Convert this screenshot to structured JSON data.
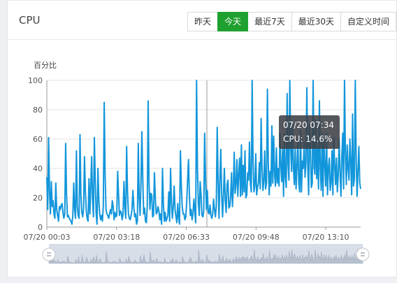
{
  "panel": {
    "title": "CPU"
  },
  "range_tabs": [
    {
      "label": "昨天",
      "active": false
    },
    {
      "label": "今天",
      "active": true
    },
    {
      "label": "最近7天",
      "active": false
    },
    {
      "label": "最近30天",
      "active": false
    },
    {
      "label": "自定义时间",
      "active": false
    }
  ],
  "tooltip": {
    "time": "07/20 07:34",
    "value": "CPU: 14.6%"
  },
  "chart_data": {
    "type": "line",
    "ylabel": "百分比",
    "ylim": [
      0,
      100
    ],
    "y_ticks": [
      0,
      20,
      40,
      60,
      80,
      100
    ],
    "x_tick_labels": [
      "07/20 00:03",
      "07/20 03:18",
      "07/20 06:33",
      "07/20 09:48",
      "07/20 13:10"
    ],
    "grid": true,
    "colors": {
      "line": "#1296db",
      "dataZoom_fill": "#d8dee8"
    },
    "series": [
      {
        "values": [
          34,
          12,
          61,
          24,
          9,
          31,
          14,
          18,
          9,
          6,
          30,
          12,
          8,
          4,
          14,
          12,
          15,
          16,
          10,
          6,
          9,
          57,
          22,
          7,
          8,
          6,
          5,
          4,
          2,
          8,
          30,
          12,
          6,
          52,
          14,
          8,
          6,
          63,
          22,
          10,
          7,
          13,
          48,
          24,
          11,
          6,
          4,
          33,
          9,
          28,
          48,
          18,
          7,
          61,
          32,
          9,
          2,
          40,
          18,
          9,
          5,
          8,
          4,
          15,
          85,
          36,
          12,
          9,
          8,
          6,
          9,
          12,
          9,
          18,
          14,
          5,
          10,
          7,
          8,
          38,
          22,
          8,
          11,
          10,
          5,
          9,
          31,
          14,
          6,
          55,
          24,
          9,
          6,
          5,
          8,
          12,
          25,
          14,
          7,
          9,
          2,
          4,
          57,
          20,
          8,
          30,
          65,
          33,
          9,
          13,
          4,
          3,
          14,
          86,
          30,
          12,
          23,
          22,
          7,
          8,
          37,
          20,
          9,
          10,
          14,
          11,
          5,
          9,
          2,
          40,
          16,
          4,
          10,
          4,
          6,
          8,
          24,
          4,
          40,
          17,
          6,
          14,
          28,
          12,
          7,
          3,
          16,
          6,
          2,
          52,
          28,
          14,
          9,
          9,
          5,
          7,
          17,
          32,
          46,
          22,
          8,
          12,
          5,
          9,
          19,
          11,
          3,
          100,
          40,
          16,
          8,
          31,
          22,
          8,
          7,
          11,
          64,
          33,
          12,
          25,
          10,
          9,
          15,
          8,
          6,
          9,
          19,
          12,
          7,
          14,
          68,
          33,
          6,
          32,
          53,
          22,
          7,
          22,
          40,
          18,
          10,
          29,
          32,
          13,
          14,
          21,
          37,
          14,
          26,
          51,
          23,
          29,
          46,
          21,
          36,
          47,
          21,
          56,
          22,
          42,
          24,
          52,
          20,
          22,
          37,
          32,
          58,
          30,
          24,
          100,
          44,
          24,
          28,
          50,
          22,
          27,
          30,
          44,
          26,
          74,
          40,
          25,
          31,
          52,
          26,
          30,
          94,
          43,
          22,
          38,
          28,
          69,
          30,
          62,
          36,
          28,
          54,
          30,
          40,
          28,
          64,
          42,
          31,
          54,
          21,
          64,
          34,
          27,
          91,
          43,
          32,
          100,
          54,
          38,
          72,
          41,
          29,
          54,
          26,
          42,
          60,
          30,
          24,
          66,
          24,
          45,
          40,
          58,
          34,
          44,
          95,
          42,
          22,
          70,
          52,
          27,
          30,
          100,
          41,
          36,
          73,
          33,
          54,
          26,
          86,
          40,
          25,
          64,
          21,
          61,
          42,
          28,
          64,
          22,
          40,
          47,
          25,
          30,
          52,
          22,
          61,
          42,
          29,
          47,
          24,
          35,
          60,
          38,
          21,
          48,
          64,
          26,
          100,
          51,
          29,
          56,
          40,
          32,
          60,
          44,
          22,
          77,
          28,
          33,
          100,
          46,
          21,
          38,
          55,
          30,
          26
        ]
      }
    ]
  }
}
